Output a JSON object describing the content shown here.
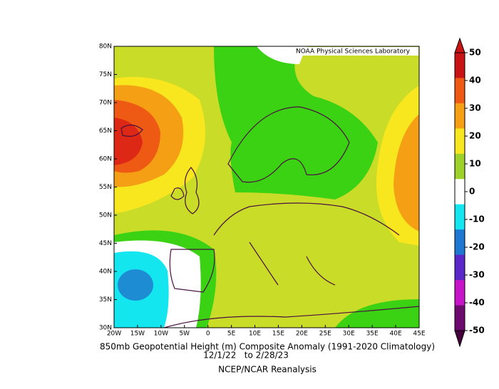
{
  "map": {
    "credit": "NOAA Physical Sciences Laboratory",
    "lon_ticks": [
      {
        "value": -20,
        "label": "20W"
      },
      {
        "value": -15,
        "label": "15W"
      },
      {
        "value": -10,
        "label": "10W"
      },
      {
        "value": -5,
        "label": "5W"
      },
      0,
      {
        "value": 5,
        "label": "5E"
      },
      {
        "value": 10,
        "label": "10E"
      },
      {
        "value": 15,
        "label": "15E"
      },
      {
        "value": 20,
        "label": "20E"
      },
      {
        "value": 25,
        "label": "25E"
      },
      {
        "value": 30,
        "label": "30E"
      },
      {
        "value": 35,
        "label": "35E"
      },
      {
        "value": 40,
        "label": "40E"
      },
      {
        "value": 45,
        "label": "45E"
      }
    ],
    "lat_ticks": [
      {
        "value": 30,
        "label": "30N"
      },
      {
        "value": 35,
        "label": "35N"
      },
      {
        "value": 40,
        "label": "40N"
      },
      {
        "value": 45,
        "label": "45N"
      },
      {
        "value": 50,
        "label": "50N"
      },
      {
        "value": 55,
        "label": "55N"
      },
      {
        "value": 60,
        "label": "60N"
      },
      {
        "value": 65,
        "label": "65N"
      },
      {
        "value": 70,
        "label": "70N"
      },
      {
        "value": 75,
        "label": "75N"
      },
      {
        "value": 80,
        "label": "80N"
      }
    ],
    "lonlim": [
      -20,
      45
    ],
    "latlim": [
      30,
      80
    ],
    "caption": [
      "850mb Geopotential Height (m) Composite Anomaly (1991-2020 Climatology)",
      "12/1/22   to 2/28/23",
      "NCEP/NCAR Reanalysis"
    ]
  },
  "colorbar": {
    "ticks": [
      50,
      40,
      30,
      20,
      10,
      0,
      -10,
      -20,
      -30,
      -40,
      -50
    ],
    "colors": [
      "#c81414",
      "#ee5a14",
      "#f5a014",
      "#f8e61e",
      "#9ed228",
      "#ffffff",
      "#14e6f0",
      "#1e78d2",
      "#5a28c8",
      "#c814c8",
      "#6e0a6e"
    ],
    "top_color": "#c81414",
    "bottom_color": "#46003c"
  }
}
